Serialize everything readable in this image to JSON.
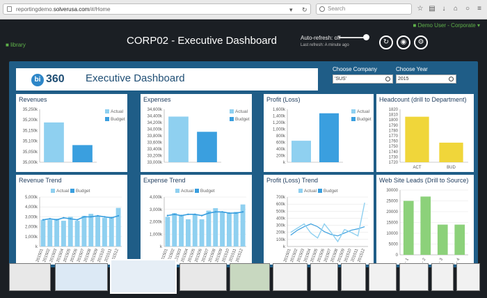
{
  "browser": {
    "url_prefix": "reportingdemo.",
    "url_host": "solverusa.com",
    "url_path": "/#/Home",
    "search_placeholder": "Search"
  },
  "app": {
    "user_label": "Demo User - Corporate",
    "library_label": "library",
    "page_title": "CORP02 - Executive Dashboard",
    "auto_refresh": "Auto-refresh: off",
    "last_refresh": "Last refresh: A minute ago"
  },
  "dashboard": {
    "logo_text": "360",
    "logo_mark": "bi",
    "title": "Executive Dashboard",
    "company_label": "Choose Company",
    "company_value": "'SUS'",
    "year_label": "Choose Year",
    "year_value": "2015"
  },
  "colors": {
    "actual": "#8fd0f0",
    "budget": "#3a9fdf",
    "act_yellow": "#f0d63a",
    "green": "#8cd17a"
  },
  "legend": {
    "actual": "Actual",
    "budget": "Budget"
  },
  "chart_data": [
    {
      "id": "revenues",
      "title": "Revenues",
      "type": "bar",
      "categories": [
        "Actual",
        "Budget"
      ],
      "values": [
        35188,
        35081
      ],
      "ylim": [
        35000,
        35250
      ],
      "ticks": [
        "35,250k",
        "35,200k",
        "35,150k",
        "35,100k",
        "35,050k",
        "35,000k"
      ]
    },
    {
      "id": "expenses",
      "title": "Expenses",
      "type": "bar",
      "categories": [
        "Actual",
        "Budget"
      ],
      "values": [
        34380,
        33920
      ],
      "ylim": [
        33000,
        34600
      ],
      "ticks": [
        "34,600k",
        "34,400k",
        "34,200k",
        "34,000k",
        "33,800k",
        "33,600k",
        "33,400k",
        "33,200k",
        "33,000k"
      ]
    },
    {
      "id": "profit",
      "title": "Profit (Loss)",
      "type": "bar",
      "categories": [
        "Actual",
        "Budget"
      ],
      "values": [
        650,
        1480
      ],
      "ylim": [
        0,
        1600
      ],
      "ticks": [
        "1,600k",
        "1,400k",
        "1,200k",
        "1,000k",
        "800k",
        "600k",
        "400k",
        "200k",
        "k"
      ]
    },
    {
      "id": "headcount",
      "title": "Headcount (drill to Department)",
      "type": "bar",
      "categories": [
        "ACT",
        "BUD"
      ],
      "values": [
        1806,
        1757
      ],
      "ylim": [
        1720,
        1820
      ],
      "ticks": [
        "1820",
        "1810",
        "1800",
        "1790",
        "1780",
        "1770",
        "1760",
        "1750",
        "1740",
        "1730",
        "1720"
      ]
    },
    {
      "id": "revenue_trend",
      "title": "Revenue Trend",
      "type": "bar",
      "ylim": [
        0,
        5000
      ],
      "ticks": [
        "5,000k",
        "4,000k",
        "3,000k",
        "2,000k",
        "1,000k",
        "k"
      ],
      "x": [
        "201501",
        "201502",
        "201503",
        "201504",
        "201505",
        "201506",
        "201507",
        "201508",
        "201509",
        "201510",
        "201511",
        "201512"
      ],
      "actual": [
        2700,
        2700,
        2800,
        2600,
        3000,
        2600,
        3100,
        3300,
        3100,
        2900,
        3000,
        3900
      ],
      "budget": [
        2700,
        2800,
        2700,
        2900,
        2800,
        2700,
        3000,
        3000,
        3100,
        3000,
        2900,
        3100
      ]
    },
    {
      "id": "expense_trend",
      "title": "Expense Trend",
      "type": "bar",
      "ylim": [
        0,
        4000
      ],
      "ticks": [
        "4,000k",
        "3,000k",
        "2,000k",
        "1,000k",
        "k"
      ],
      "x": [
        "201501",
        "201502",
        "201503",
        "201504",
        "201505",
        "201506",
        "201507",
        "201508",
        "201509",
        "201510",
        "201511",
        "201512"
      ],
      "actual": [
        2400,
        2700,
        2500,
        2200,
        2600,
        2200,
        2900,
        3100,
        2800,
        2700,
        2800,
        3400
      ],
      "budget": [
        2500,
        2600,
        2500,
        2600,
        2600,
        2500,
        2700,
        2800,
        2800,
        2700,
        2700,
        2800
      ]
    },
    {
      "id": "profit_trend",
      "title": "Profit (Loss) Trend",
      "type": "line",
      "ylim": [
        0,
        700
      ],
      "ticks": [
        "700k",
        "600k",
        "500k",
        "400k",
        "300k",
        "200k",
        "100k",
        "k"
      ],
      "x": [
        "201501",
        "201502",
        "201503",
        "201504",
        "201505",
        "201506",
        "201507",
        "201508",
        "201509",
        "201510",
        "201511",
        "201512"
      ],
      "actual": [
        200,
        260,
        320,
        190,
        120,
        320,
        200,
        70,
        240,
        200,
        150,
        620
      ],
      "budget": [
        160,
        230,
        280,
        320,
        280,
        210,
        170,
        150,
        190,
        230,
        250,
        280
      ]
    },
    {
      "id": "web_leads",
      "title": "Web Site Leads (Drill to Source)",
      "type": "bar",
      "ylim": [
        0,
        30000
      ],
      "ticks": [
        "30000",
        "25000",
        "20000",
        "15000",
        "10000",
        "5000",
        "0"
      ],
      "categories": [
        "Qtr - 1",
        "Qtr - 2",
        "Qtr - 3",
        "Qtr - 4"
      ],
      "values": [
        25000,
        27000,
        14000,
        14000
      ]
    }
  ]
}
